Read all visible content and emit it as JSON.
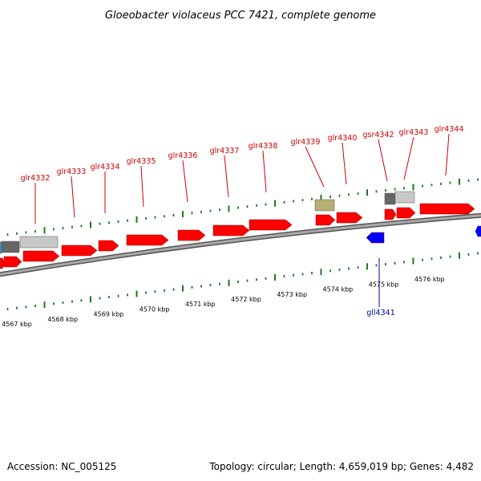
{
  "title": "Gloeobacter violaceus PCC 7421, complete genome",
  "footer": {
    "accession": "Accession: NC_005125",
    "summary": "Topology: circular; Length: 4,659,019 bp; Genes: 4,482"
  },
  "colors": {
    "forward_gene": "#ff0000",
    "reverse_gene": "#0000ff",
    "tick": "#1a7a1a",
    "forward_label": "#cc0000",
    "reverse_label": "#0000aa",
    "backbone": "#888888",
    "grey_feature": "#666666",
    "light_grey_feature": "#c8c8c8",
    "khaki_feature": "#b8b070",
    "cyan_feature": "#3399cc"
  },
  "scale": {
    "labels": [
      "4567 kbp",
      "4568 kbp",
      "4569 kbp",
      "4570 kbp",
      "4571 kbp",
      "4572 kbp",
      "4573 kbp",
      "4574 kbp",
      "4575 kbp",
      "4576 kbp"
    ]
  },
  "forward_labels": [
    "glr4332",
    "glr4333",
    "glr4334",
    "glr4335",
    "glr4336",
    "glr4337",
    "glr4338",
    "glr4339",
    "glr4340",
    "gsr4342",
    "glr4343",
    "glr4344"
  ],
  "reverse_labels": [
    "gll4341"
  ]
}
